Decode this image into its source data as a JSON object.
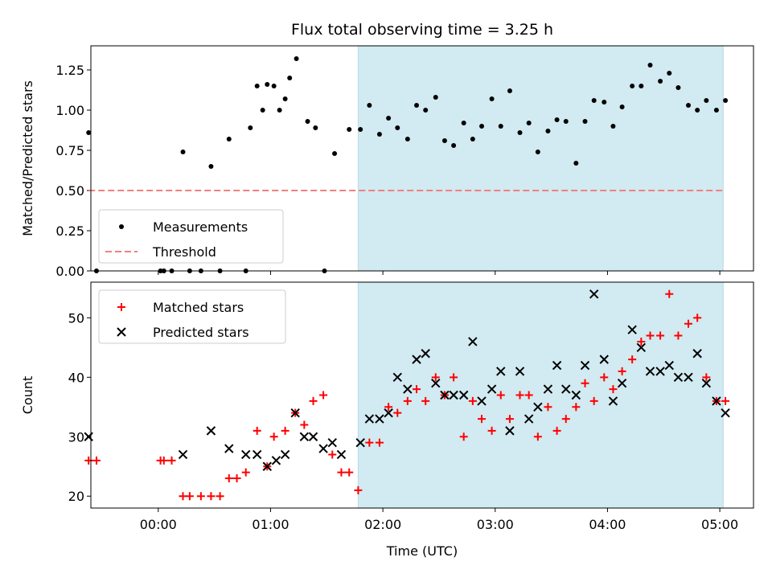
{
  "chart_data": [
    {
      "type": "scatter",
      "title": "Flux total observing time = 3.25 h",
      "xlabel": "",
      "ylabel": "Matched/Predicted stars",
      "xlim": [
        -0.6,
        5.3
      ],
      "ylim": [
        0,
        1.4
      ],
      "yticks": [
        0.0,
        0.25,
        0.5,
        0.75,
        1.0,
        1.25
      ],
      "ytick_labels": [
        "0.00",
        "0.25",
        "0.50",
        "0.75",
        "1.00",
        "1.25"
      ],
      "shaded_region": {
        "x_start": 1.78,
        "x_end": 5.03,
        "color": "#add8e6"
      },
      "legend_location": "lower-left",
      "series": [
        {
          "name": "Measurements",
          "marker": "dot",
          "color": "#000000",
          "x": [
            -0.62,
            -0.55,
            0.02,
            0.05,
            0.12,
            0.22,
            0.28,
            0.38,
            0.47,
            0.55,
            0.63,
            0.78,
            0.82,
            0.88,
            0.93,
            0.97,
            1.03,
            1.08,
            1.13,
            1.17,
            1.23,
            1.33,
            1.4,
            1.48,
            1.57,
            1.7,
            1.8,
            1.88,
            1.97,
            2.05,
            2.13,
            2.22,
            2.3,
            2.38,
            2.47,
            2.55,
            2.63,
            2.72,
            2.8,
            2.88,
            2.97,
            3.05,
            3.13,
            3.22,
            3.3,
            3.38,
            3.47,
            3.55,
            3.63,
            3.72,
            3.8,
            3.88,
            3.97,
            4.05,
            4.13,
            4.22,
            4.3,
            4.38,
            4.47,
            4.55,
            4.63,
            4.72,
            4.8,
            4.88,
            4.97,
            5.05
          ],
          "y": [
            0.86,
            0.0,
            0.0,
            0.0,
            0.0,
            0.74,
            0.0,
            0.0,
            0.65,
            0.0,
            0.82,
            0.0,
            0.89,
            1.15,
            1.0,
            1.16,
            1.15,
            1.0,
            1.07,
            1.2,
            1.32,
            0.93,
            0.89,
            0.0,
            0.73,
            0.88,
            0.88,
            1.03,
            0.85,
            0.95,
            0.89,
            0.82,
            1.03,
            1.0,
            1.08,
            0.81,
            0.78,
            0.92,
            0.82,
            0.9,
            1.07,
            0.9,
            1.12,
            0.86,
            0.92,
            0.74,
            0.87,
            0.94,
            0.93,
            0.67,
            0.93,
            1.06,
            1.05,
            0.9,
            1.02,
            1.15,
            1.15,
            1.28,
            1.18,
            1.23,
            1.14,
            1.03,
            1.0,
            1.06,
            1.0,
            1.06
          ]
        },
        {
          "name": "Threshold",
          "style": "dashed-line",
          "color": "#f08080",
          "x": [
            -0.62,
            5.05
          ],
          "y": [
            0.5,
            0.5
          ]
        }
      ]
    },
    {
      "type": "scatter",
      "title": "",
      "xlabel": "Time (UTC)",
      "ylabel": "Count",
      "xlim": [
        -0.6,
        5.3
      ],
      "ylim": [
        18,
        56
      ],
      "xticks": [
        0,
        1,
        2,
        3,
        4,
        5
      ],
      "xtick_labels": [
        "00:00",
        "01:00",
        "02:00",
        "03:00",
        "04:00",
        "05:00"
      ],
      "yticks": [
        20,
        30,
        40,
        50
      ],
      "ytick_labels": [
        "20",
        "30",
        "40",
        "50"
      ],
      "shaded_region": {
        "x_start": 1.78,
        "x_end": 5.03,
        "color": "#add8e6"
      },
      "legend_location": "upper-left",
      "series": [
        {
          "name": "Matched stars",
          "marker": "plus",
          "color": "#ff0000",
          "x": [
            -0.62,
            -0.55,
            0.02,
            0.05,
            0.12,
            0.22,
            0.28,
            0.38,
            0.47,
            0.55,
            0.63,
            0.7,
            0.78,
            0.88,
            0.97,
            1.03,
            1.13,
            1.22,
            1.3,
            1.38,
            1.47,
            1.55,
            1.63,
            1.7,
            1.78,
            1.88,
            1.97,
            2.05,
            2.13,
            2.22,
            2.3,
            2.38,
            2.47,
            2.55,
            2.63,
            2.72,
            2.8,
            2.88,
            2.97,
            3.05,
            3.13,
            3.22,
            3.3,
            3.38,
            3.47,
            3.55,
            3.63,
            3.72,
            3.8,
            3.88,
            3.97,
            4.05,
            4.13,
            4.22,
            4.3,
            4.38,
            4.47,
            4.55,
            4.63,
            4.72,
            4.8,
            4.88,
            4.97,
            5.05
          ],
          "y": [
            26,
            26,
            26,
            26,
            26,
            20,
            20,
            20,
            20,
            20,
            23,
            23,
            24,
            31,
            25,
            30,
            31,
            34,
            32,
            36,
            37,
            27,
            24,
            24,
            21,
            29,
            29,
            35,
            34,
            36,
            38,
            36,
            40,
            37,
            40,
            30,
            36,
            33,
            31,
            37,
            33,
            37,
            37,
            30,
            35,
            31,
            33,
            35,
            39,
            36,
            40,
            38,
            41,
            43,
            46,
            47,
            47,
            54,
            47,
            49,
            50,
            40,
            36,
            36
          ]
        },
        {
          "name": "Predicted stars",
          "marker": "x",
          "color": "#000000",
          "x": [
            -0.62,
            0.22,
            0.47,
            0.63,
            0.78,
            0.88,
            0.97,
            1.05,
            1.13,
            1.22,
            1.3,
            1.38,
            1.47,
            1.55,
            1.63,
            1.8,
            1.88,
            1.97,
            2.05,
            2.13,
            2.22,
            2.3,
            2.38,
            2.47,
            2.55,
            2.63,
            2.72,
            2.8,
            2.88,
            2.97,
            3.05,
            3.13,
            3.22,
            3.3,
            3.38,
            3.47,
            3.55,
            3.63,
            3.72,
            3.8,
            3.88,
            3.97,
            4.05,
            4.13,
            4.22,
            4.3,
            4.38,
            4.47,
            4.55,
            4.63,
            4.72,
            4.8,
            4.88,
            4.97,
            5.05
          ],
          "y": [
            30,
            27,
            31,
            28,
            27,
            27,
            25,
            26,
            27,
            34,
            30,
            30,
            28,
            29,
            27,
            29,
            33,
            33,
            34,
            40,
            38,
            43,
            44,
            39,
            37,
            37,
            37,
            46,
            36,
            38,
            41,
            31,
            41,
            33,
            35,
            38,
            42,
            38,
            37,
            42,
            54,
            43,
            36,
            39,
            48,
            45,
            41,
            41,
            42,
            40,
            40,
            44,
            39,
            36,
            34
          ]
        }
      ]
    }
  ]
}
